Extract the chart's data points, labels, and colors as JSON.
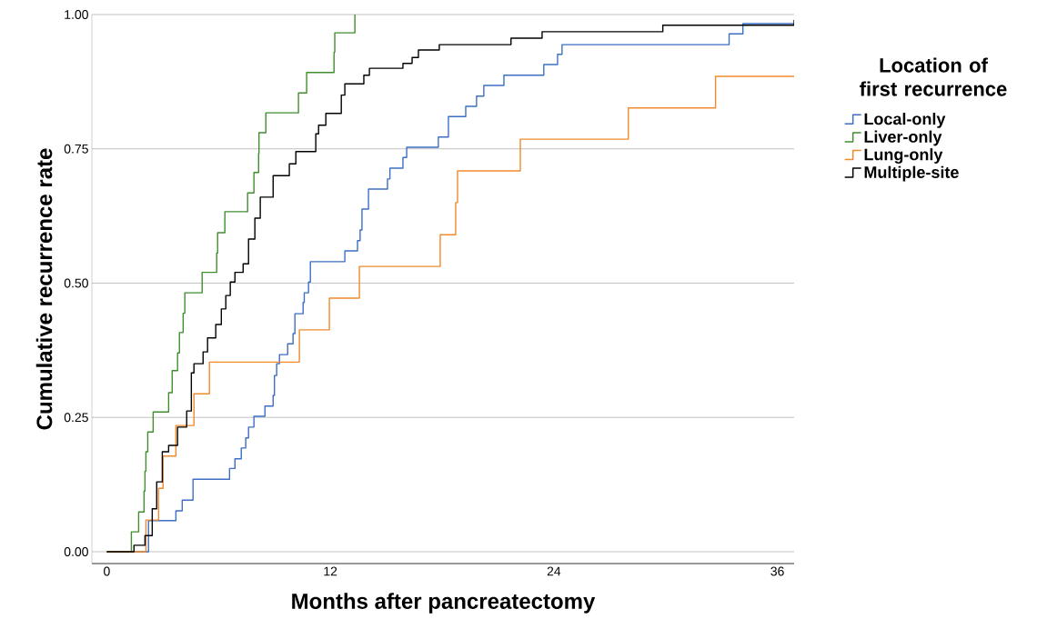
{
  "chart_data": {
    "type": "step",
    "xlabel": "Months after pancreatectomy",
    "ylabel": "Cumulative recurrence rate",
    "legend_title": "Location of first recurrence",
    "xlim": [
      -0.8,
      36.9
    ],
    "ylim": [
      -0.022,
      1.0
    ],
    "xticks": [
      0,
      12,
      24,
      36
    ],
    "yticks": [
      {
        "value": 0,
        "label": "0.00"
      },
      {
        "value": 0.25,
        "label": "0.25"
      },
      {
        "value": 0.5,
        "label": "0.50"
      },
      {
        "value": 0.75,
        "label": "0.75"
      },
      {
        "value": 1.0,
        "label": "1.00"
      }
    ],
    "grid": "y",
    "legend": "right",
    "series": [
      {
        "name": "Local-only",
        "color": "#3d6fc4",
        "x": [
          0,
          2.24,
          3.71,
          4.05,
          4.63,
          6.59,
          6.88,
          7.22,
          7.46,
          7.61,
          7.9,
          8.49,
          8.93,
          9.0,
          9.12,
          9.27,
          9.71,
          10.0,
          10.1,
          10.54,
          10.6,
          10.83,
          10.93,
          12.78,
          13.46,
          13.6,
          13.7,
          14.05,
          15.07,
          15.2,
          15.9,
          16.1,
          17.8,
          18.34,
          19.27,
          19.85,
          20.24,
          21.32,
          23.46,
          24.2,
          24.44,
          33.41,
          34.15,
          36.9
        ],
        "values": [
          0,
          0.058,
          0.076,
          0.096,
          0.135,
          0.155,
          0.173,
          0.193,
          0.212,
          0.232,
          0.252,
          0.271,
          0.291,
          0.328,
          0.35,
          0.367,
          0.387,
          0.406,
          0.443,
          0.464,
          0.482,
          0.502,
          0.54,
          0.56,
          0.579,
          0.599,
          0.638,
          0.675,
          0.694,
          0.714,
          0.734,
          0.753,
          0.772,
          0.81,
          0.829,
          0.848,
          0.868,
          0.887,
          0.907,
          0.926,
          0.944,
          0.964,
          0.983,
          0.983
        ]
      },
      {
        "name": "Liver-only",
        "color": "#3f8f2e",
        "x": [
          0,
          1.32,
          1.71,
          2.0,
          2.05,
          2.1,
          2.2,
          2.49,
          3.32,
          3.51,
          3.8,
          3.9,
          4.1,
          4.19,
          5.12,
          5.9,
          5.95,
          6.34,
          7.56,
          7.9,
          8.15,
          8.17,
          8.54,
          10.29,
          10.73,
          12.2,
          12.24,
          13.32
        ],
        "values": [
          0,
          0.037,
          0.074,
          0.113,
          0.15,
          0.186,
          0.223,
          0.26,
          0.296,
          0.337,
          0.37,
          0.408,
          0.444,
          0.482,
          0.52,
          0.556,
          0.594,
          0.633,
          0.668,
          0.706,
          0.741,
          0.78,
          0.817,
          0.854,
          0.892,
          0.93,
          0.966,
          1.0
        ]
      },
      {
        "name": "Lung-only",
        "color": "#f08a2c",
        "x": [
          0,
          2.1,
          2.78,
          3.02,
          3.71,
          4.68,
          5.51,
          10.34,
          11.95,
          13.56,
          17.9,
          18.73,
          18.83,
          22.2,
          28.0,
          32.68,
          36.9
        ],
        "values": [
          0,
          0.059,
          0.118,
          0.178,
          0.235,
          0.294,
          0.353,
          0.413,
          0.472,
          0.531,
          0.59,
          0.65,
          0.709,
          0.768,
          0.826,
          0.885,
          0.885
        ]
      },
      {
        "name": "Multiple-site",
        "color": "#000000",
        "x": [
          0,
          1.46,
          2.05,
          2.44,
          2.68,
          2.98,
          3.32,
          3.8,
          4.29,
          4.54,
          4.68,
          5.17,
          5.41,
          5.85,
          6.15,
          6.39,
          6.63,
          6.88,
          7.32,
          7.61,
          7.95,
          8.24,
          8.93,
          9.8,
          10.15,
          11.22,
          11.37,
          11.76,
          12.59,
          12.78,
          13.8,
          14.1,
          15.9,
          16.39,
          16.73,
          17.85,
          21.7,
          23.37,
          29.85,
          36.9
        ],
        "values": [
          0,
          0.012,
          0.03,
          0.08,
          0.13,
          0.186,
          0.198,
          0.232,
          0.262,
          0.333,
          0.35,
          0.372,
          0.398,
          0.423,
          0.452,
          0.477,
          0.502,
          0.52,
          0.536,
          0.582,
          0.621,
          0.66,
          0.7,
          0.722,
          0.745,
          0.778,
          0.794,
          0.816,
          0.85,
          0.871,
          0.887,
          0.9,
          0.909,
          0.92,
          0.934,
          0.944,
          0.956,
          0.968,
          0.98,
          0.99
        ]
      }
    ]
  }
}
